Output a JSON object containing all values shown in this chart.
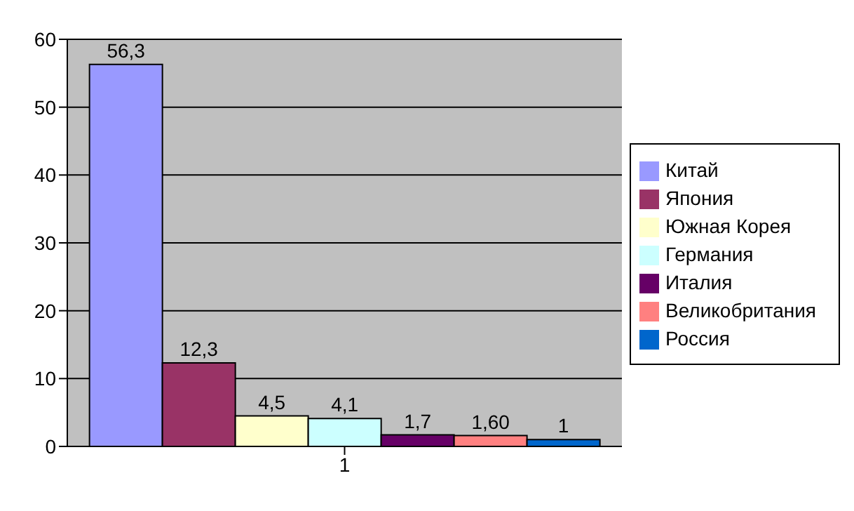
{
  "chart_data": {
    "type": "bar",
    "categories": [
      "1"
    ],
    "series": [
      {
        "name": "Китай",
        "color": "#9999ff",
        "values": [
          56.3
        ],
        "value_labels": [
          "56,3"
        ]
      },
      {
        "name": "Япония",
        "color": "#993366",
        "values": [
          12.3
        ],
        "value_labels": [
          "12,3"
        ]
      },
      {
        "name": "Южная Корея",
        "color": "#ffffcc",
        "values": [
          4.5
        ],
        "value_labels": [
          "4,5"
        ]
      },
      {
        "name": "Германия",
        "color": "#ccffff",
        "values": [
          4.1
        ],
        "value_labels": [
          "4,1"
        ]
      },
      {
        "name": "Италия",
        "color": "#660066",
        "values": [
          1.7
        ],
        "value_labels": [
          "1,7"
        ]
      },
      {
        "name": "Великобритания",
        "color": "#ff8080",
        "values": [
          1.6
        ],
        "value_labels": [
          "1,60"
        ]
      },
      {
        "name": "Россия",
        "color": "#0066cc",
        "values": [
          1
        ],
        "value_labels": [
          "1"
        ]
      }
    ],
    "ylim": [
      0,
      60
    ],
    "yticks": [
      0,
      10,
      20,
      30,
      40,
      50,
      60
    ],
    "grid": "y",
    "legend": "right"
  }
}
